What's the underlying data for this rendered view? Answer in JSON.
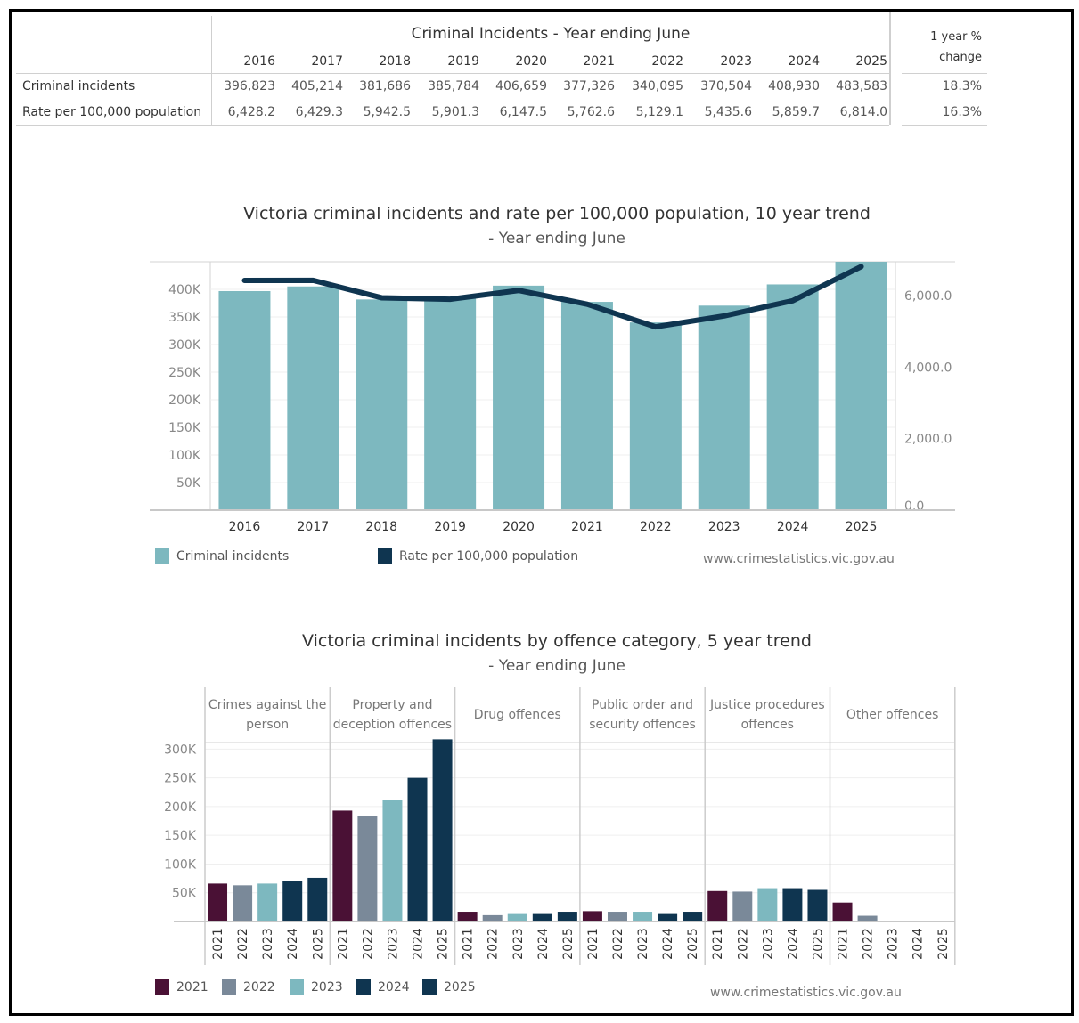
{
  "table": {
    "title": "Criminal Incidents - Year ending June",
    "years": [
      "2016",
      "2017",
      "2018",
      "2019",
      "2020",
      "2021",
      "2022",
      "2023",
      "2024",
      "2025"
    ],
    "rows": [
      {
        "label": "Criminal incidents",
        "values": [
          "396,823",
          "405,214",
          "381,686",
          "385,784",
          "406,659",
          "377,326",
          "340,095",
          "370,504",
          "408,930",
          "483,583"
        ],
        "change": "18.3%"
      },
      {
        "label": "Rate per 100,000 population",
        "values": [
          "6,428.2",
          "6,429.3",
          "5,942.5",
          "5,901.3",
          "6,147.5",
          "5,762.6",
          "5,129.1",
          "5,435.6",
          "5,859.7",
          "6,814.0"
        ],
        "change": "16.3%"
      }
    ],
    "change_header_line1": "1 year %",
    "change_header_line2": "change"
  },
  "chart_data": [
    {
      "type": "bar+line",
      "title": "Victoria criminal incidents and rate per 100,000 population, 10 year trend",
      "subtitle": "- Year ending June",
      "categories": [
        "2016",
        "2017",
        "2018",
        "2019",
        "2020",
        "2021",
        "2022",
        "2023",
        "2024",
        "2025"
      ],
      "series": [
        {
          "name": "Criminal incidents",
          "type": "bar",
          "axis": "left",
          "color": "#7db8bf",
          "values": [
            396823,
            405214,
            381686,
            385784,
            406659,
            377326,
            340095,
            370504,
            408930,
            483583
          ]
        },
        {
          "name": "Rate per 100,000 population",
          "type": "line",
          "axis": "right",
          "color": "#0f3550",
          "values": [
            6428.2,
            6429.3,
            5942.5,
            5901.3,
            6147.5,
            5762.6,
            5129.1,
            5435.6,
            5859.7,
            6814.0
          ]
        }
      ],
      "left_axis": {
        "ticks": [
          "50K",
          "100K",
          "150K",
          "200K",
          "250K",
          "300K",
          "350K",
          "400K"
        ],
        "tick_values": [
          50000,
          100000,
          150000,
          200000,
          250000,
          300000,
          350000,
          400000
        ],
        "range": [
          0,
          450000
        ]
      },
      "right_axis": {
        "ticks": [
          "0.0",
          "2,000.0",
          "4,000.0",
          "6,000.0"
        ],
        "tick_values": [
          0,
          2000,
          4000,
          6000
        ],
        "range": [
          0,
          6950
        ]
      },
      "grid": true,
      "legend": [
        {
          "label": "Criminal incidents",
          "color": "#7db8bf"
        },
        {
          "label": "Rate per 100,000 population",
          "color": "#0f3550"
        }
      ],
      "legend_position": "bottom-left",
      "source": "www.crimestatistics.vic.gov.au"
    },
    {
      "type": "bar",
      "title": "Victoria criminal incidents by offence category, 5 year trend",
      "subtitle": "- Year ending June",
      "facets": [
        "Crimes against the person",
        "Property and deception offences",
        "Drug offences",
        "Public order and security offences",
        "Justice procedures offences",
        "Other offences"
      ],
      "categories": [
        "2021",
        "2022",
        "2023",
        "2024",
        "2025"
      ],
      "colors": {
        "2021": "#4a1135",
        "2022": "#7a8999",
        "2023": "#7db8bf",
        "2024": "#0f3550",
        "2025": "#0f3550"
      },
      "values": [
        [
          66000,
          63000,
          66000,
          70000,
          76000
        ],
        [
          193000,
          184000,
          212000,
          250000,
          317000
        ],
        [
          17000,
          11000,
          13000,
          13000,
          17000
        ],
        [
          18000,
          17000,
          17000,
          13000,
          17000
        ],
        [
          53000,
          52000,
          58000,
          58000,
          55000
        ],
        [
          33000,
          10000,
          0,
          0,
          0
        ]
      ],
      "y_axis": {
        "ticks": [
          "50K",
          "100K",
          "150K",
          "200K",
          "250K",
          "300K"
        ],
        "tick_values": [
          50000,
          100000,
          150000,
          200000,
          250000,
          300000
        ],
        "range": [
          0,
          330000
        ]
      },
      "grid": true,
      "legend": [
        {
          "label": "2021",
          "color": "#4a1135"
        },
        {
          "label": "2022",
          "color": "#7a8999"
        },
        {
          "label": "2023",
          "color": "#7db8bf"
        },
        {
          "label": "2024",
          "color": "#0f3550"
        },
        {
          "label": "2025",
          "color": "#0f3550"
        }
      ],
      "legend_position": "bottom-left",
      "source": "www.crimestatistics.vic.gov.au"
    }
  ]
}
